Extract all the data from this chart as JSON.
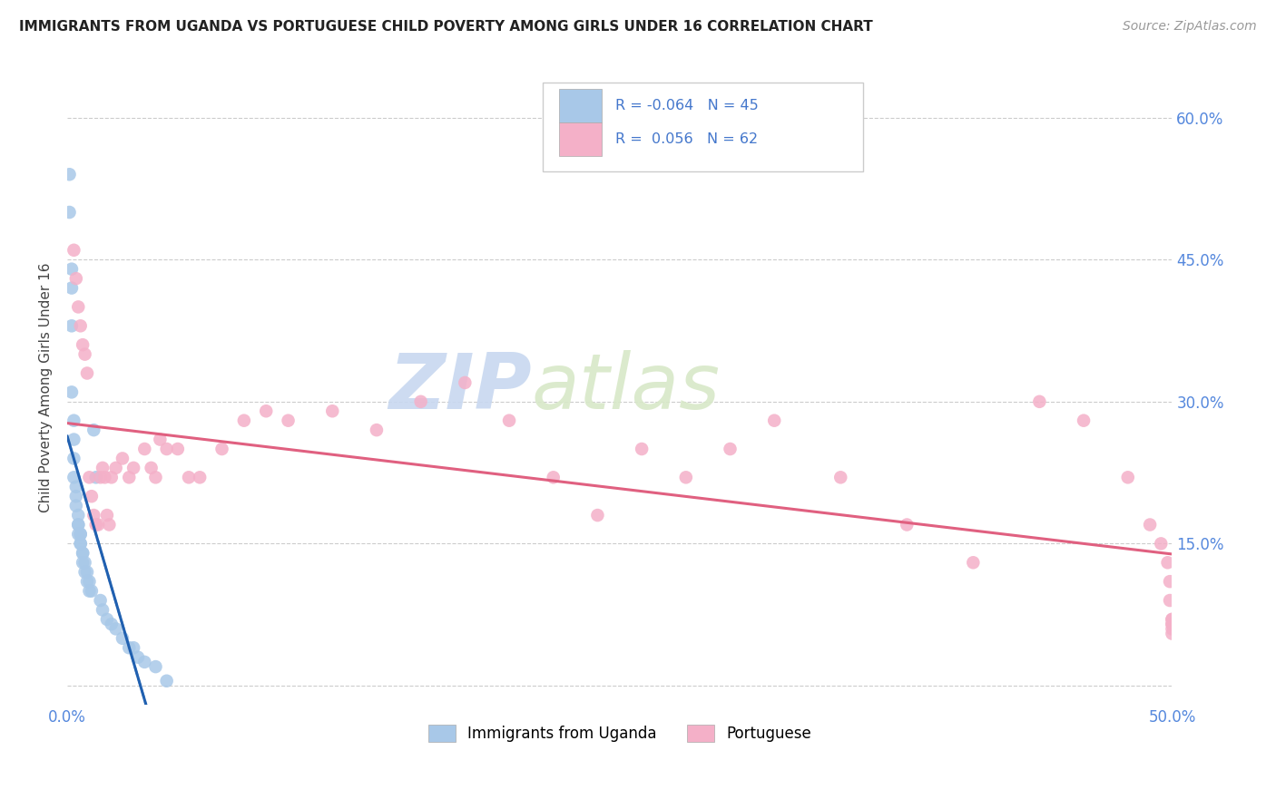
{
  "title": "IMMIGRANTS FROM UGANDA VS PORTUGUESE CHILD POVERTY AMONG GIRLS UNDER 16 CORRELATION CHART",
  "source": "Source: ZipAtlas.com",
  "ylabel": "Child Poverty Among Girls Under 16",
  "xlim": [
    0.0,
    0.5
  ],
  "ylim": [
    -0.02,
    0.65
  ],
  "yticks": [
    0.0,
    0.15,
    0.3,
    0.45,
    0.6
  ],
  "ytick_labels": [
    "",
    "15.0%",
    "30.0%",
    "45.0%",
    "60.0%"
  ],
  "xticks": [
    0.0,
    0.1,
    0.2,
    0.3,
    0.4,
    0.5
  ],
  "xtick_labels": [
    "0.0%",
    "",
    "",
    "",
    "",
    "50.0%"
  ],
  "legend_label1": "Immigrants from Uganda",
  "legend_label2": "Portuguese",
  "R1": "-0.064",
  "N1": "45",
  "R2": "0.056",
  "N2": "62",
  "color_uganda": "#a8c8e8",
  "color_portuguese": "#f4b0c8",
  "color_uganda_line": "#2060b0",
  "color_portuguese_line": "#e06080",
  "background_color": "#ffffff",
  "watermark_zip": "ZIP",
  "watermark_atlas": "atlas",
  "uganda_x": [
    0.001,
    0.001,
    0.002,
    0.002,
    0.002,
    0.002,
    0.003,
    0.003,
    0.003,
    0.003,
    0.004,
    0.004,
    0.004,
    0.005,
    0.005,
    0.005,
    0.005,
    0.006,
    0.006,
    0.006,
    0.006,
    0.007,
    0.007,
    0.007,
    0.008,
    0.008,
    0.009,
    0.009,
    0.01,
    0.01,
    0.011,
    0.012,
    0.013,
    0.015,
    0.016,
    0.018,
    0.02,
    0.022,
    0.025,
    0.028,
    0.03,
    0.032,
    0.035,
    0.04,
    0.045
  ],
  "uganda_y": [
    0.54,
    0.5,
    0.44,
    0.42,
    0.38,
    0.31,
    0.28,
    0.26,
    0.24,
    0.22,
    0.21,
    0.2,
    0.19,
    0.18,
    0.17,
    0.17,
    0.16,
    0.16,
    0.16,
    0.15,
    0.15,
    0.14,
    0.14,
    0.13,
    0.13,
    0.12,
    0.12,
    0.11,
    0.11,
    0.1,
    0.1,
    0.27,
    0.22,
    0.09,
    0.08,
    0.07,
    0.065,
    0.06,
    0.05,
    0.04,
    0.04,
    0.03,
    0.025,
    0.02,
    0.005
  ],
  "portuguese_x": [
    0.003,
    0.004,
    0.005,
    0.006,
    0.007,
    0.008,
    0.009,
    0.01,
    0.011,
    0.012,
    0.013,
    0.014,
    0.015,
    0.016,
    0.017,
    0.018,
    0.019,
    0.02,
    0.022,
    0.025,
    0.028,
    0.03,
    0.035,
    0.038,
    0.04,
    0.042,
    0.045,
    0.05,
    0.055,
    0.06,
    0.07,
    0.08,
    0.09,
    0.1,
    0.12,
    0.14,
    0.16,
    0.18,
    0.2,
    0.22,
    0.24,
    0.26,
    0.28,
    0.3,
    0.32,
    0.35,
    0.38,
    0.41,
    0.44,
    0.46,
    0.48,
    0.49,
    0.495,
    0.498,
    0.499,
    0.499,
    0.5,
    0.5,
    0.5,
    0.5,
    0.5,
    0.5
  ],
  "portuguese_y": [
    0.46,
    0.43,
    0.4,
    0.38,
    0.36,
    0.35,
    0.33,
    0.22,
    0.2,
    0.18,
    0.17,
    0.17,
    0.22,
    0.23,
    0.22,
    0.18,
    0.17,
    0.22,
    0.23,
    0.24,
    0.22,
    0.23,
    0.25,
    0.23,
    0.22,
    0.26,
    0.25,
    0.25,
    0.22,
    0.22,
    0.25,
    0.28,
    0.29,
    0.28,
    0.29,
    0.27,
    0.3,
    0.32,
    0.28,
    0.22,
    0.18,
    0.25,
    0.22,
    0.25,
    0.28,
    0.22,
    0.17,
    0.13,
    0.3,
    0.28,
    0.22,
    0.17,
    0.15,
    0.13,
    0.11,
    0.09,
    0.065,
    0.055,
    0.07,
    0.06,
    0.07,
    0.065
  ]
}
